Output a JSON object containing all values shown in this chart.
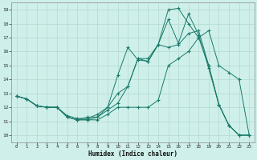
{
  "title": "",
  "xlabel": "Humidex (Indice chaleur)",
  "xlim": [
    -0.5,
    23.5
  ],
  "ylim": [
    9.5,
    19.5
  ],
  "xticks": [
    0,
    1,
    2,
    3,
    4,
    5,
    6,
    7,
    8,
    9,
    10,
    11,
    12,
    13,
    14,
    15,
    16,
    17,
    18,
    19,
    20,
    21,
    22,
    23
  ],
  "yticks": [
    10,
    11,
    12,
    13,
    14,
    15,
    16,
    17,
    18,
    19
  ],
  "background_color": "#cff0ea",
  "grid_color": "#b0d8d0",
  "line_color": "#1a7a6a",
  "lines": [
    {
      "x": [
        0,
        1,
        2,
        3,
        4,
        5,
        6,
        7,
        8,
        9,
        10,
        11,
        12,
        13,
        14,
        15,
        16,
        17,
        18,
        19,
        20,
        21,
        22,
        23
      ],
      "y": [
        12.8,
        12.6,
        12.1,
        12.0,
        12.0,
        11.3,
        11.1,
        11.1,
        11.1,
        11.5,
        12.0,
        12.0,
        12.0,
        12.0,
        12.5,
        15.0,
        15.5,
        16.0,
        17.0,
        17.5,
        15.0,
        14.5,
        14.0,
        10.0
      ]
    },
    {
      "x": [
        0,
        1,
        2,
        3,
        4,
        5,
        6,
        7,
        8,
        9,
        10,
        11,
        12,
        13,
        14,
        15,
        16,
        17,
        18,
        19,
        20,
        21,
        22,
        23
      ],
      "y": [
        12.8,
        12.6,
        12.1,
        12.0,
        12.0,
        11.3,
        11.1,
        11.1,
        11.3,
        11.8,
        12.3,
        13.5,
        15.5,
        15.3,
        16.5,
        16.3,
        16.5,
        17.3,
        17.5,
        15.0,
        12.2,
        10.7,
        10.0,
        10.0
      ]
    },
    {
      "x": [
        0,
        1,
        2,
        3,
        4,
        5,
        6,
        7,
        8,
        9,
        10,
        11,
        12,
        13,
        14,
        15,
        16,
        17,
        18,
        19,
        20,
        21,
        22,
        23
      ],
      "y": [
        12.8,
        12.6,
        12.1,
        12.0,
        12.0,
        11.4,
        11.2,
        11.2,
        11.5,
        12.0,
        14.3,
        16.3,
        15.4,
        15.3,
        16.5,
        18.3,
        16.6,
        18.7,
        17.2,
        14.8,
        12.2,
        10.7,
        10.0,
        10.0
      ]
    },
    {
      "x": [
        0,
        1,
        2,
        3,
        4,
        5,
        6,
        7,
        8,
        9,
        10,
        11,
        12,
        13,
        14,
        15,
        16,
        17,
        18,
        19,
        20,
        21,
        22,
        23
      ],
      "y": [
        12.8,
        12.6,
        12.1,
        12.0,
        12.0,
        11.3,
        11.1,
        11.3,
        11.3,
        12.0,
        13.0,
        13.5,
        15.5,
        15.5,
        16.5,
        19.0,
        19.1,
        18.0,
        17.0,
        15.0,
        12.2,
        10.7,
        10.0,
        10.0
      ]
    }
  ]
}
